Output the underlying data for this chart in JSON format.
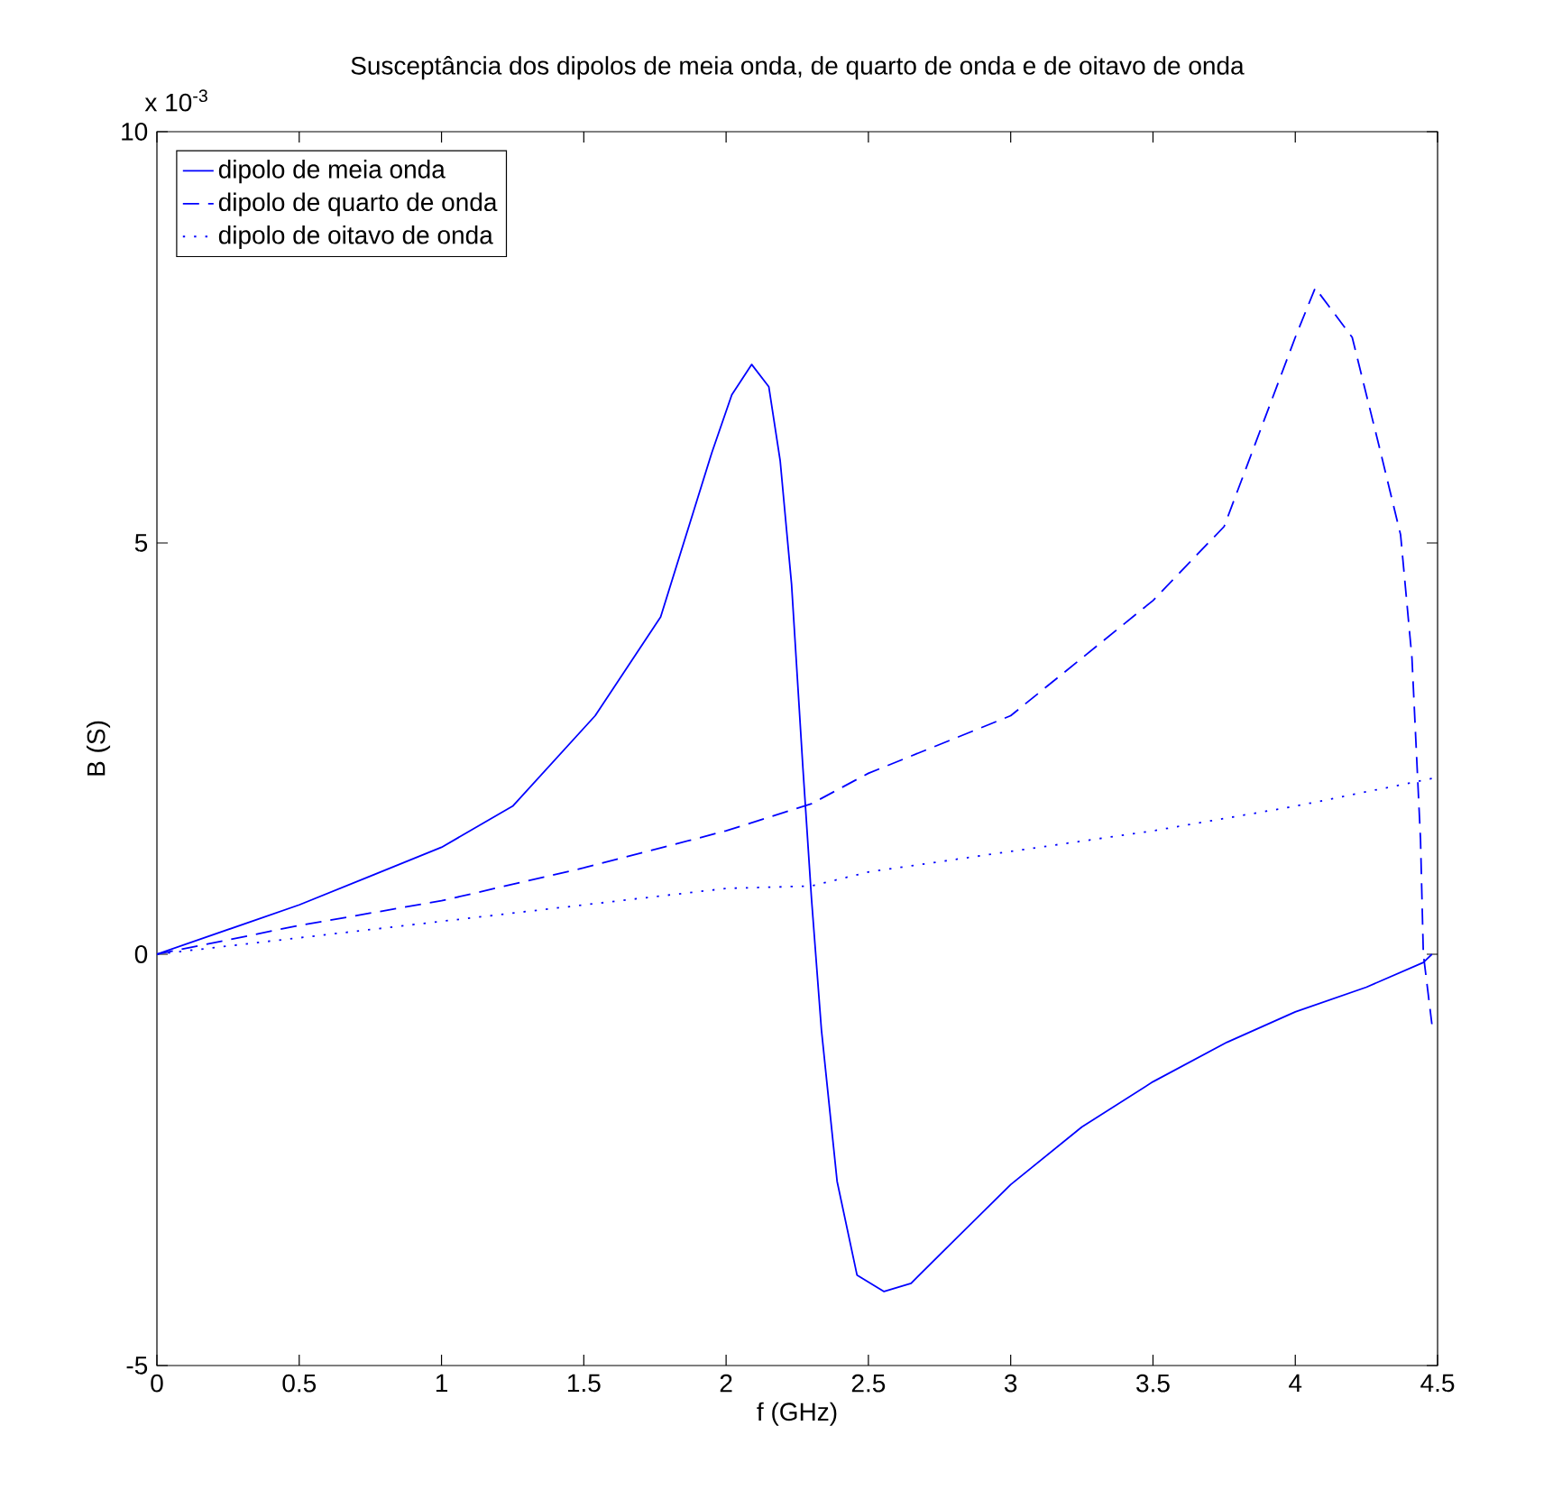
{
  "chart_data": {
    "type": "line",
    "title": "Susceptância dos dipolos de meia onda, de quarto de onda e de oitavo de onda",
    "xlabel": "f (GHz)",
    "ylabel": "B (S)",
    "annotations": [
      "x 10$^{-3}$"
    ],
    "xlim": [
      0,
      4.5
    ],
    "ylim": [
      -5,
      10
    ],
    "xticks": [
      0,
      0.5,
      1,
      1.5,
      2,
      2.5,
      3,
      3.5,
      4,
      4.5
    ],
    "yticks": [
      -5,
      0,
      5,
      10
    ],
    "legend": "top left",
    "series": [
      {
        "name": "dipolo de meia onda",
        "color": "#0000ff",
        "line_style": "solid",
        "x": [
          0,
          0.25,
          0.5,
          0.75,
          1.0,
          1.25,
          1.54,
          1.77,
          1.95,
          2.02,
          2.09,
          2.15,
          2.19,
          2.23,
          2.27,
          2.3,
          2.335,
          2.39,
          2.46,
          2.555,
          2.65,
          2.81,
          3.0,
          3.25,
          3.5,
          3.76,
          4.0,
          4.25,
          4.45,
          4.48
        ],
        "values": [
          0,
          0.3,
          0.6,
          0.95,
          1.3,
          1.8,
          2.9,
          4.1,
          6.1,
          6.8,
          7.17,
          6.9,
          6.0,
          4.5,
          2.26,
          0.68,
          -0.92,
          -2.76,
          -3.9,
          -4.1,
          -4.0,
          -3.45,
          -2.8,
          -2.1,
          -1.55,
          -1.07,
          -0.7,
          -0.4,
          -0.1,
          0
        ]
      },
      {
        "name": "dipolo de quarto de onda",
        "color": "#0000ff",
        "line_style": "dashed",
        "x": [
          0,
          0.5,
          1.0,
          1.5,
          2.0,
          2.3,
          2.5,
          3.0,
          3.5,
          3.75,
          4.0,
          4.07,
          4.2,
          4.3,
          4.37,
          4.41,
          4.44,
          4.45,
          4.48
        ],
        "values": [
          0,
          0.35,
          0.65,
          1.05,
          1.5,
          1.83,
          2.2,
          2.9,
          4.3,
          5.2,
          7.5,
          8.1,
          7.5,
          6.1,
          5.1,
          3.6,
          1.4,
          0,
          -0.85
        ]
      },
      {
        "name": "dipolo de oitavo de onda",
        "color": "#0000ff",
        "line_style": "dotted",
        "x": [
          0,
          0.5,
          1.0,
          1.5,
          2.0,
          2.3,
          2.5,
          3.0,
          3.5,
          4.0,
          4.5
        ],
        "values": [
          0,
          0.2,
          0.4,
          0.6,
          0.8,
          0.83,
          1.0,
          1.25,
          1.5,
          1.8,
          2.15
        ]
      }
    ]
  }
}
